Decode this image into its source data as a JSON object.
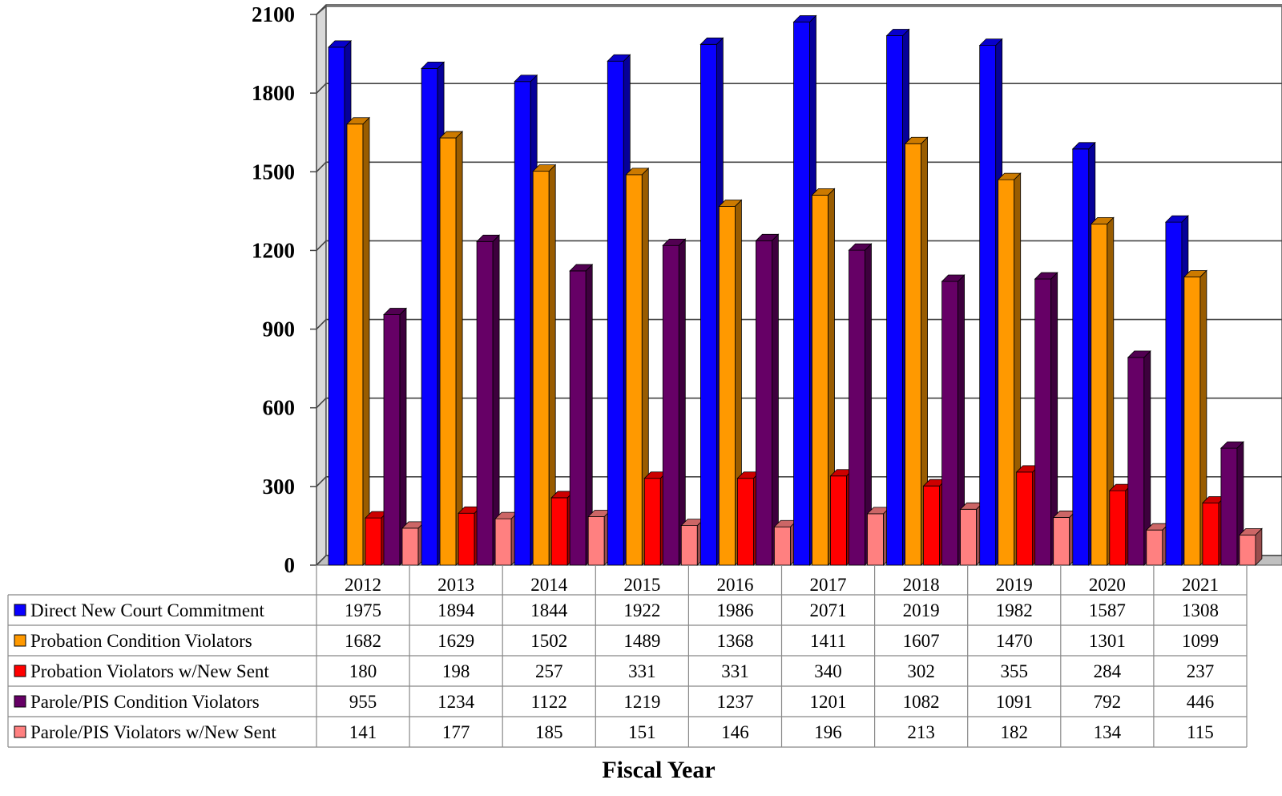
{
  "chart_data": {
    "type": "bar",
    "subtype": "3d-clustered-column-with-data-table",
    "categories": [
      "2012",
      "2013",
      "2014",
      "2015",
      "2016",
      "2017",
      "2018",
      "2019",
      "2020",
      "2021"
    ],
    "series": [
      {
        "name": "Direct New Court Commitment",
        "color": "#0a00ff",
        "values": [
          1975,
          1894,
          1844,
          1922,
          1986,
          2071,
          2019,
          1982,
          1587,
          1308
        ]
      },
      {
        "name": "Probation Condition Violators",
        "color": "#ff9900",
        "values": [
          1682,
          1629,
          1502,
          1489,
          1368,
          1411,
          1607,
          1470,
          1301,
          1099
        ]
      },
      {
        "name": "Probation Violators w/New Sent",
        "color": "#ff0000",
        "values": [
          180,
          198,
          257,
          331,
          331,
          340,
          302,
          355,
          284,
          237
        ]
      },
      {
        "name": "Parole/PIS Condition Violators",
        "color": "#660066",
        "values": [
          955,
          1234,
          1122,
          1219,
          1237,
          1201,
          1082,
          1091,
          792,
          446
        ]
      },
      {
        "name": "Parole/PIS Violators w/New Sent",
        "color": "#ff8080",
        "values": [
          141,
          177,
          185,
          151,
          146,
          196,
          213,
          182,
          134,
          115
        ]
      }
    ],
    "y_ticks": [
      0,
      300,
      600,
      900,
      1200,
      1500,
      1800,
      2100
    ],
    "ylim": [
      0,
      2100
    ],
    "xlabel": "Fiscal Year",
    "ylabel": "",
    "grid": true,
    "legend": "data-table"
  }
}
